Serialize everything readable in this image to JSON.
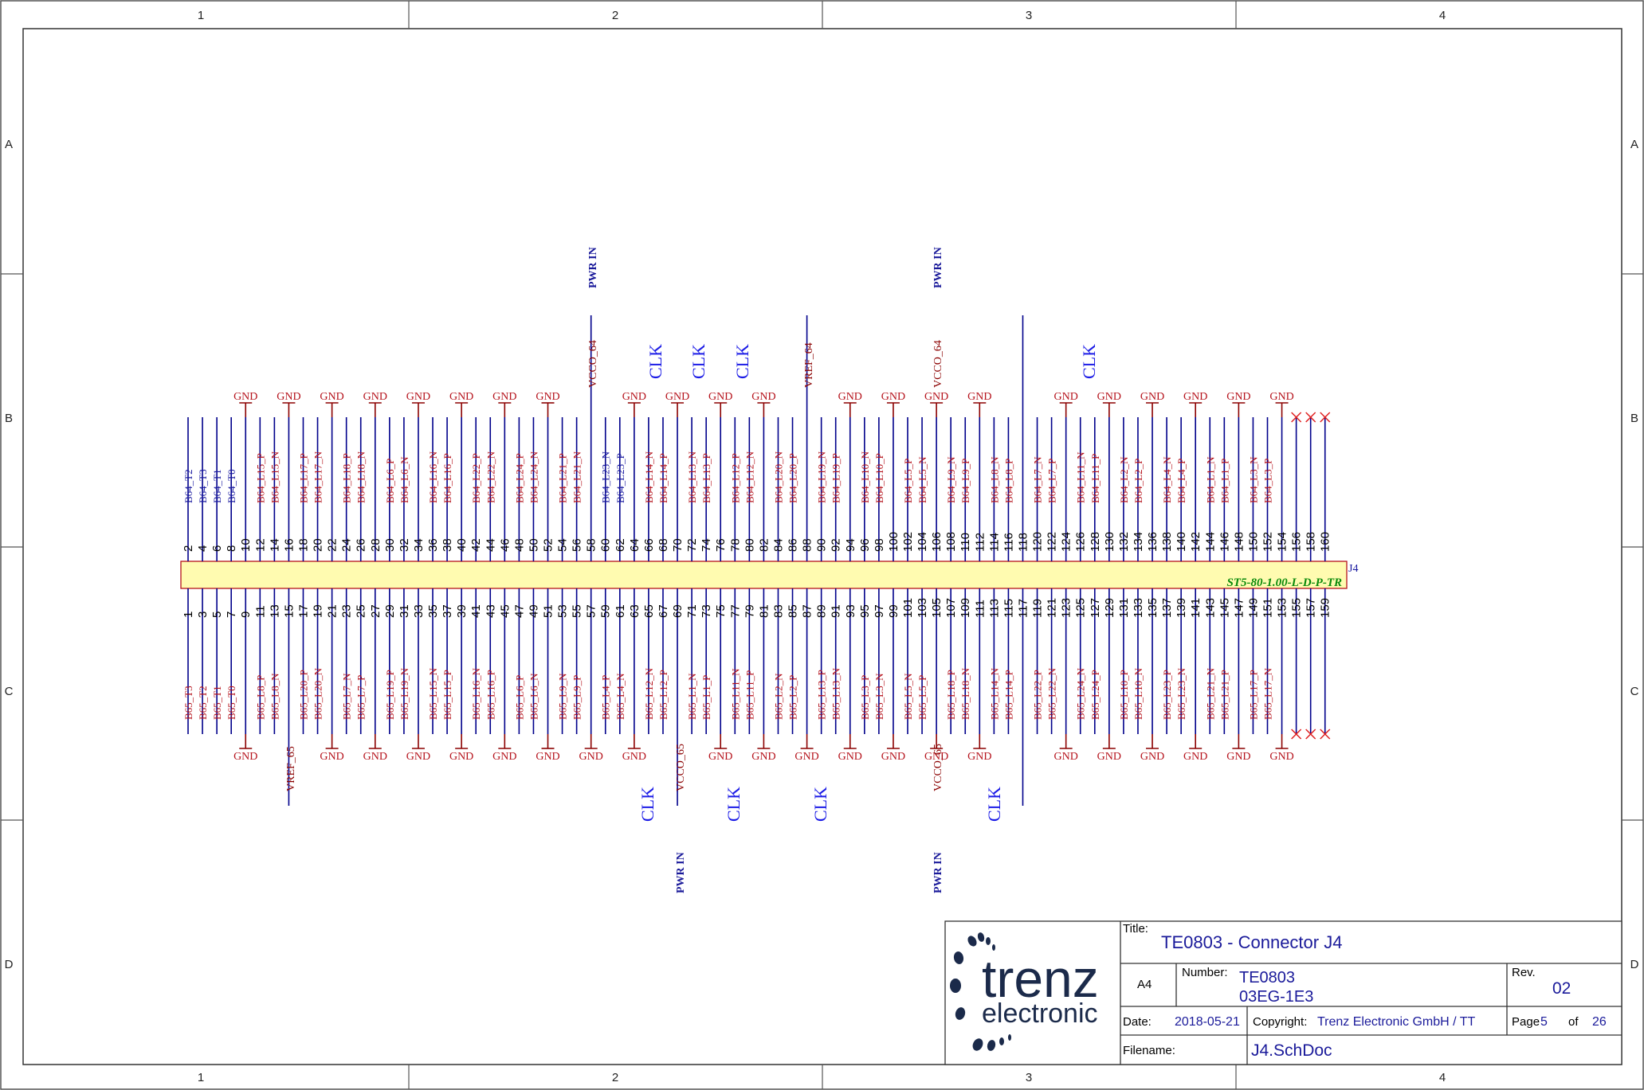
{
  "sheet": {
    "columns": [
      "1",
      "2",
      "3",
      "4"
    ],
    "rows": [
      "A",
      "B",
      "C",
      "D"
    ]
  },
  "component": {
    "designator": "J4",
    "part": "ST5-80-1.00-L-D-P-TR"
  },
  "top_pins": [
    "2",
    "4",
    "6",
    "8",
    "10",
    "12",
    "14",
    "16",
    "18",
    "20",
    "22",
    "24",
    "26",
    "28",
    "30",
    "32",
    "34",
    "36",
    "38",
    "40",
    "42",
    "44",
    "46",
    "48",
    "50",
    "52",
    "54",
    "56",
    "58",
    "60",
    "62",
    "64",
    "66",
    "68",
    "70",
    "72",
    "74",
    "76",
    "78",
    "80",
    "82",
    "84",
    "86",
    "88",
    "90",
    "92",
    "94",
    "96",
    "98",
    "100",
    "102",
    "104",
    "106",
    "108",
    "110",
    "112",
    "114",
    "116",
    "118",
    "120",
    "122",
    "124",
    "126",
    "128",
    "130",
    "132",
    "134",
    "136",
    "138",
    "140",
    "142",
    "144",
    "146",
    "148",
    "150",
    "152",
    "154",
    "156",
    "158",
    "160"
  ],
  "bottom_pins": [
    "1",
    "3",
    "5",
    "7",
    "9",
    "11",
    "13",
    "15",
    "17",
    "19",
    "21",
    "23",
    "25",
    "27",
    "29",
    "31",
    "33",
    "35",
    "37",
    "39",
    "41",
    "43",
    "45",
    "47",
    "49",
    "51",
    "53",
    "55",
    "57",
    "59",
    "61",
    "63",
    "65",
    "67",
    "69",
    "71",
    "73",
    "75",
    "77",
    "79",
    "81",
    "83",
    "85",
    "87",
    "89",
    "91",
    "93",
    "95",
    "97",
    "99",
    "101",
    "103",
    "105",
    "107",
    "109",
    "111",
    "113",
    "115",
    "117",
    "119",
    "121",
    "123",
    "125",
    "127",
    "129",
    "131",
    "133",
    "135",
    "137",
    "139",
    "141",
    "143",
    "145",
    "147",
    "149",
    "151",
    "153",
    "155",
    "157",
    "159"
  ],
  "top_nets": [
    "B64_T2",
    "B64_T3",
    "B64_T1",
    "B64_T0",
    "",
    "B64_L15_P",
    "B64_L15_N",
    "",
    "B64_L17_P",
    "B64_L17_N",
    "",
    "B64_L18_P",
    "B64_L18_N",
    "",
    "B64_L6_P",
    "B64_L6_N",
    "",
    "B64_L16_N",
    "B64_L16_P",
    "",
    "B64_L22_P",
    "B64_L22_N",
    "",
    "B64_L24_P",
    "B64_L24_N",
    "",
    "B64_L21_P",
    "B64_L21_N",
    "",
    "B64_L23_N",
    "B64_L23_P",
    "",
    "B64_L14_N",
    "B64_L14_P",
    "",
    "B64_L13_N",
    "B64_L13_P",
    "",
    "B64_L12_P",
    "B64_L12_N",
    "",
    "B64_L20_N",
    "B64_L20_P",
    "",
    "B64_L19_N",
    "B64_L19_P",
    "",
    "B64_L10_N",
    "B64_L10_P",
    "",
    "B64_L5_P",
    "B64_L5_N",
    "",
    "B64_L9_N",
    "B64_L9_P",
    "",
    "B64_L8_N",
    "B64_L8_P",
    "",
    "B64_L7_N",
    "B64_L7_P",
    "",
    "B64_L11_N",
    "B64_L11_P",
    "",
    "B64_L2_N",
    "B64_L2_P",
    "",
    "B64_L4_N",
    "B64_L4_P",
    "",
    "B64_L1_N",
    "B64_L1_P",
    "",
    "B64_L3_N",
    "B64_L3_P",
    "",
    "",
    "",
    ""
  ],
  "bottom_nets": [
    "B65_T3",
    "B65_T2",
    "B65_T1",
    "B65_T0",
    "",
    "B65_L8_P",
    "B65_L8_N",
    "",
    "B65_L20_P",
    "B65_L20_N",
    "",
    "B65_L7_N",
    "B65_L7_P",
    "",
    "B65_L19_P",
    "B65_L19_N",
    "",
    "B65_L15_N",
    "B65_L15_P",
    "",
    "B65_L16_N",
    "B65_L16_P",
    "",
    "B65_L6_P",
    "B65_L6_N",
    "",
    "B65_L9_N",
    "B65_L9_P",
    "",
    "B65_L4_P",
    "B65_L4_N",
    "",
    "B65_L12_N",
    "B65_L12_P",
    "",
    "B65_L1_N",
    "B65_L1_P",
    "",
    "B65_L11_N",
    "B65_L11_P",
    "",
    "B65_L2_N",
    "B65_L2_P",
    "",
    "B65_L13_P",
    "B65_L13_N",
    "",
    "B65_L3_P",
    "B65_L3_N",
    "",
    "B65_L5_N",
    "B65_L5_P",
    "",
    "B65_L18_P",
    "B65_L18_N",
    "",
    "B65_L14_N",
    "B65_L14_P",
    "",
    "B65_L22_P",
    "B65_L22_N",
    "",
    "B65_L24_N",
    "B65_L24_P",
    "",
    "B65_L10_P",
    "B65_L10_N",
    "",
    "B65_L23_P",
    "B65_L23_N",
    "",
    "B65_L21_N",
    "B65_L21_P",
    "",
    "B65_L17_P",
    "B65_L17_N",
    "",
    "",
    "",
    ""
  ],
  "top_net_colors": "bbbbbrrbrrbrrbrrbrrbrrbrrbrrbbbbrrbrrbrrbrrbrrbrrbrrbrrbrrbrrbrrbrrbrrbrrbrrbbbb",
  "bottom_net_colors": "rrrrbrrbrrbrrbrrbrrbrrbrrbrrbrrbrrbrrbrrbrrbrrbrrbrrbrrbrrbrrbrrbrrbrrbrrbrrbbbb",
  "top_gnd_label": "GND",
  "bottom_gnd_label": "GND",
  "top_specials": {
    "vcco_64_a": "VCCO_64",
    "vcco_64_b": "VCCO_64",
    "vref_64": "VREF_64",
    "pwr_in_a": "PWR IN",
    "pwr_in_b": "PWR IN",
    "clk": [
      "CLK",
      "CLK",
      "CLK",
      "CLK"
    ]
  },
  "bottom_specials": {
    "vref_65": "VREF_65",
    "vcco_65_a": "VCCO_65",
    "vcco_65_b": "VCCO_65",
    "pwr_in_a": "PWR IN",
    "pwr_in_b": "PWR IN",
    "clk": [
      "CLK",
      "CLK",
      "CLK",
      "CLK"
    ]
  },
  "title_block": {
    "logo_main": "trenz",
    "logo_sub": "electronic",
    "title_label": "Title:",
    "title": "TE0803 - Connector J4",
    "size": "A4",
    "number_label": "Number:",
    "number_line1": "TE0803",
    "number_line2": "03EG-1E3",
    "rev_label": "Rev.",
    "rev": "02",
    "date_label": "Date:",
    "date": "2018-05-21",
    "copyright_label": "Copyright:",
    "copyright": "Trenz Electronic GmbH / TT",
    "page_label": "Page",
    "page": "5",
    "of_label": "of",
    "pages": "26",
    "filename_label": "Filename:",
    "filename": "J4.SchDoc"
  },
  "colors": {
    "border": "#444444",
    "wire": "#00008b",
    "gnd": "#8b0000",
    "connector_fill": "#fffbb0",
    "connector_stroke": "#b5121b",
    "net_red": "#b5121b",
    "net_blue": "#1a1aa0"
  }
}
